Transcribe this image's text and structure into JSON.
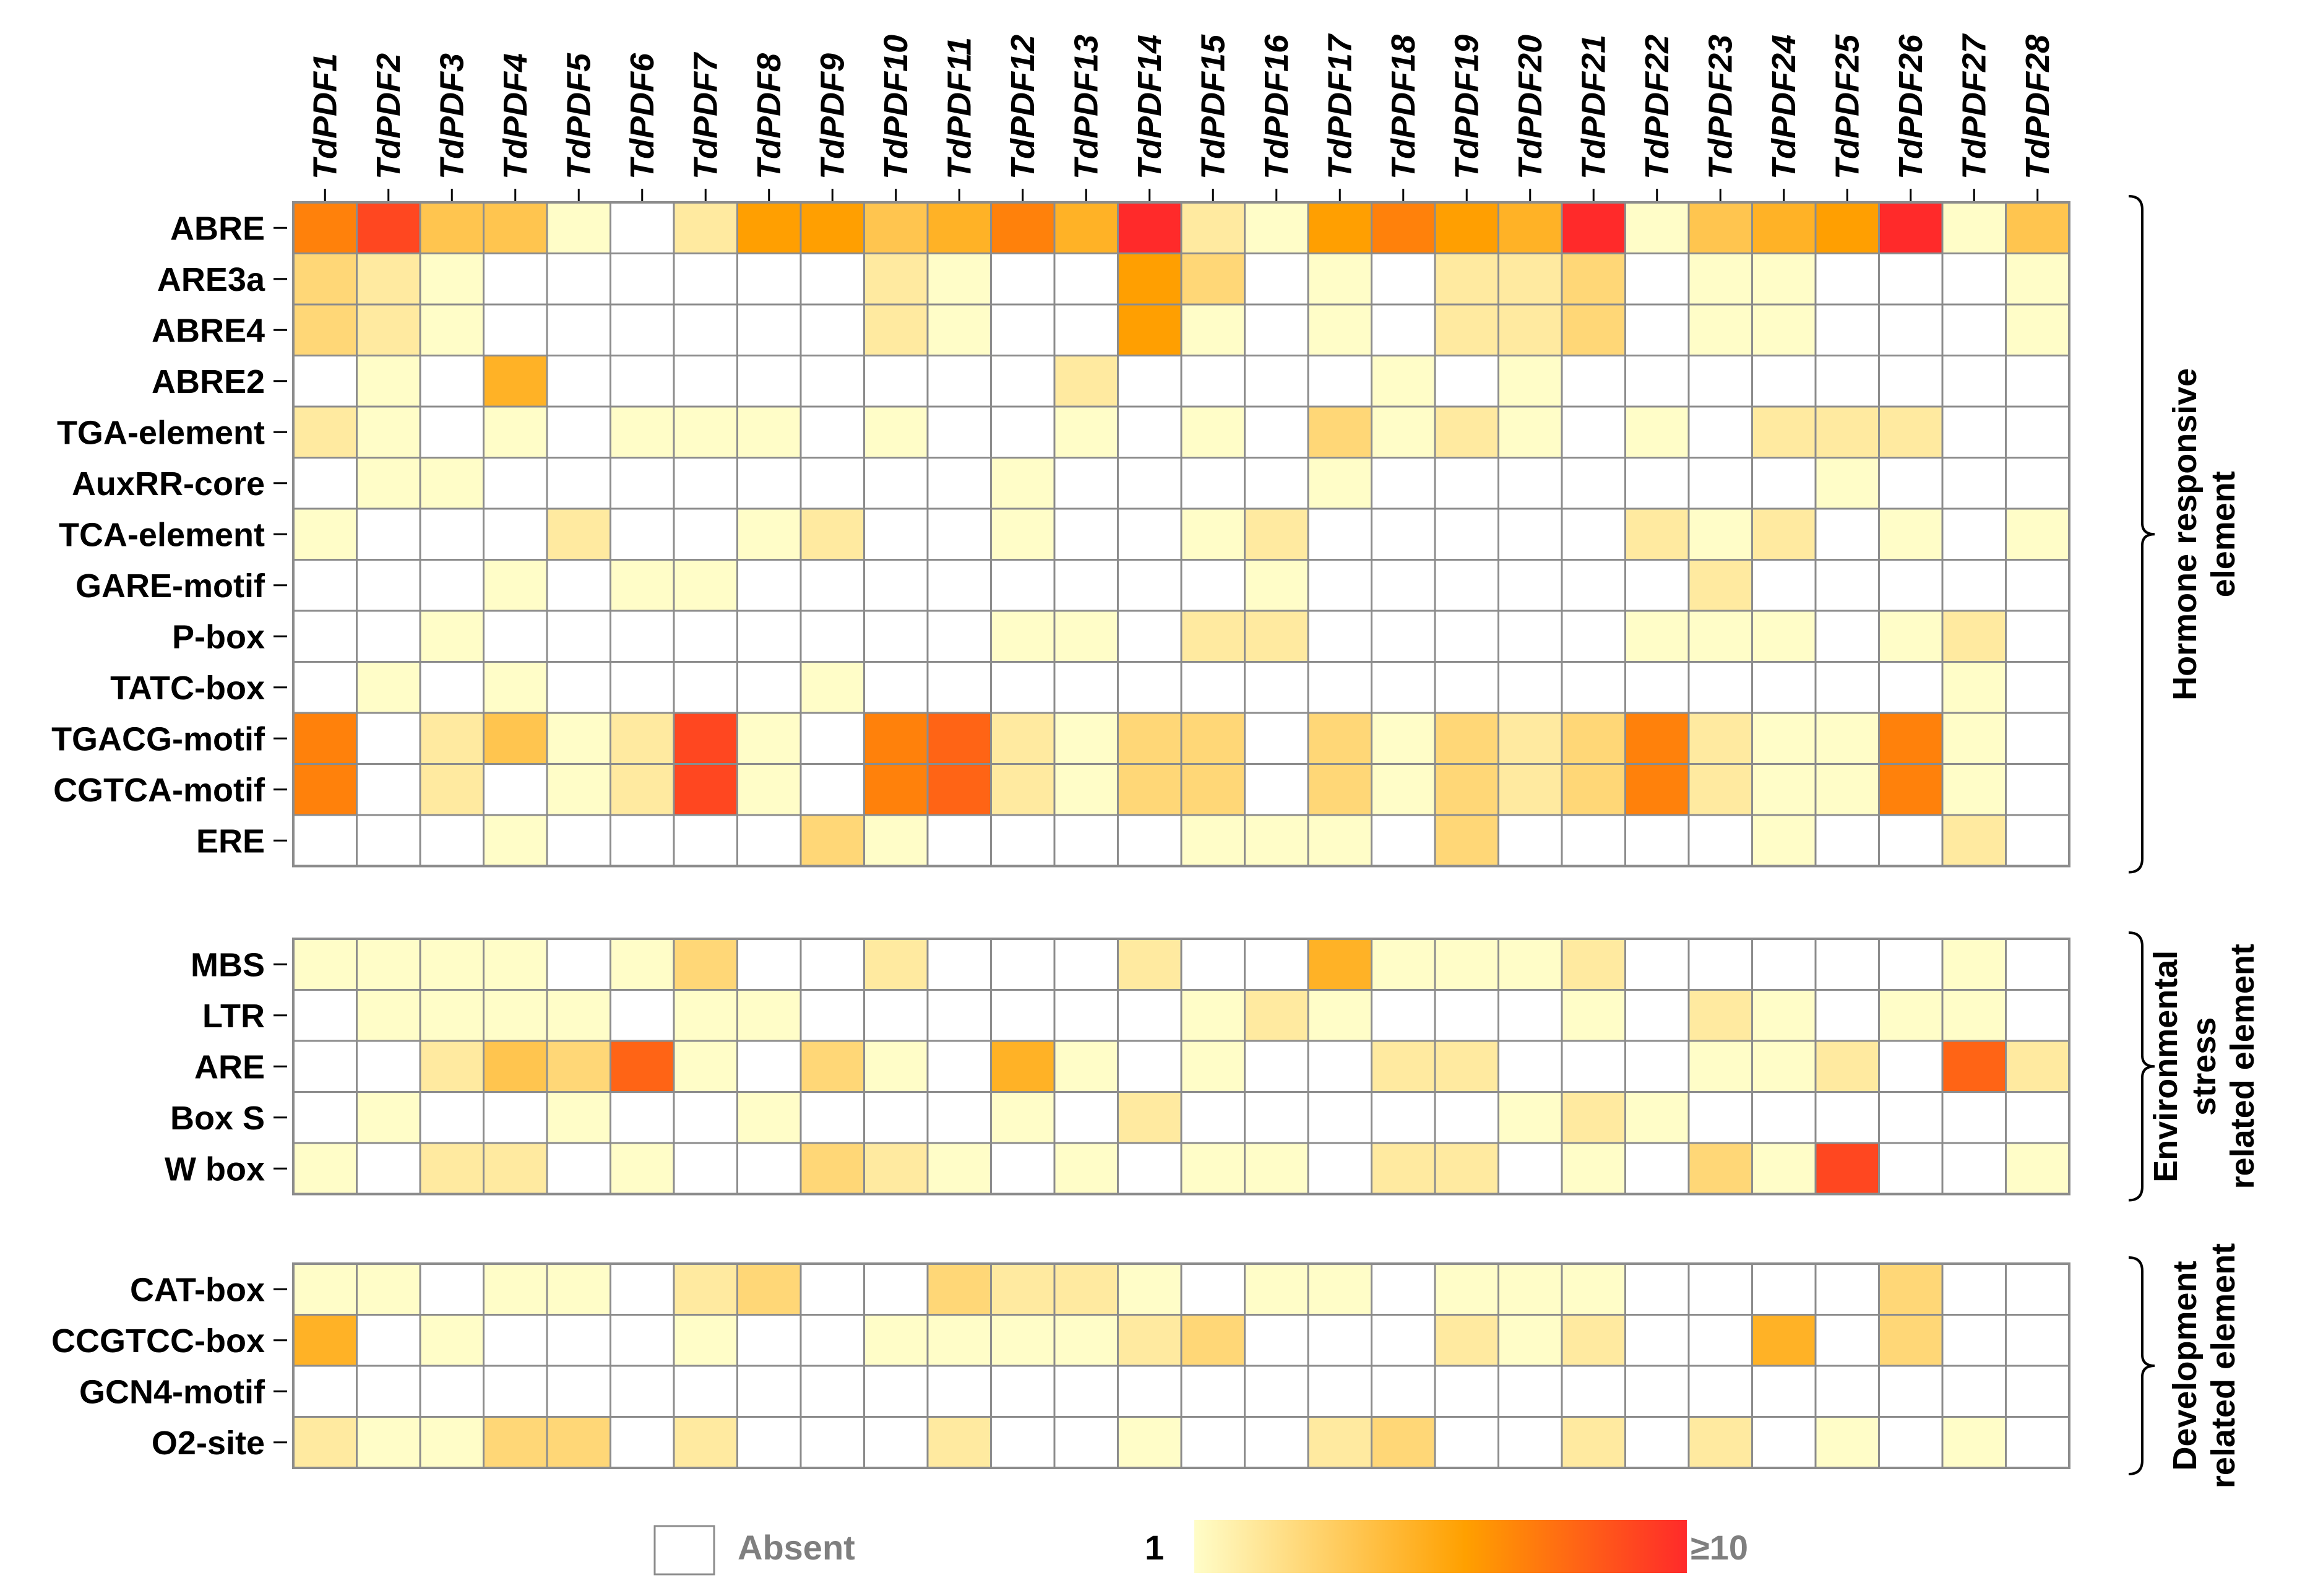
{
  "chart_data": {
    "type": "heatmap",
    "columns": [
      "TdPDF1",
      "TdPDF2",
      "TdPDF3",
      "TdPDF4",
      "TdPDF5",
      "TdPDF6",
      "TdPDF7",
      "TdPDF8",
      "TdPDF9",
      "TdPDF10",
      "TdPDF11",
      "TdPDF12",
      "TdPDF13",
      "TdPDF14",
      "TdPDF15",
      "TdPDF16",
      "TdPDF17",
      "TdPDF18",
      "TdPDF19",
      "TdPDF20",
      "TdPDF21",
      "TdPDF22",
      "TdPDF23",
      "TdPDF24",
      "TdPDF25",
      "TdPDF26",
      "TdPDF27",
      "TdPDF28"
    ],
    "groups": [
      {
        "label": [
          "Hormone responsive",
          "element"
        ],
        "rows": [
          {
            "name": "ABRE",
            "values": [
              7,
              9,
              4,
              4,
              1,
              0,
              2,
              6,
              6,
              4,
              5,
              7,
              5,
              10,
              2,
              1,
              6,
              7,
              6,
              5,
              10,
              1,
              4,
              5,
              6,
              10,
              1,
              4
            ]
          },
          {
            "name": "ARE3a",
            "values": [
              3,
              2,
              1,
              0,
              0,
              0,
              0,
              0,
              0,
              2,
              1,
              0,
              0,
              6,
              3,
              0,
              1,
              0,
              2,
              2,
              3,
              0,
              1,
              1,
              0,
              0,
              0,
              1
            ]
          },
          {
            "name": "ABRE4",
            "values": [
              3,
              2,
              1,
              0,
              0,
              0,
              0,
              0,
              0,
              2,
              1,
              0,
              0,
              6,
              1,
              0,
              1,
              0,
              2,
              2,
              3,
              0,
              1,
              1,
              0,
              0,
              0,
              1
            ]
          },
          {
            "name": "ABRE2",
            "values": [
              0,
              1,
              0,
              5,
              0,
              0,
              0,
              0,
              0,
              0,
              0,
              0,
              2,
              0,
              0,
              0,
              0,
              1,
              0,
              1,
              0,
              0,
              0,
              0,
              0,
              0,
              0,
              0
            ]
          },
          {
            "name": "TGA-element",
            "values": [
              2,
              1,
              0,
              1,
              0,
              1,
              1,
              1,
              0,
              1,
              0,
              0,
              1,
              0,
              1,
              0,
              3,
              1,
              2,
              1,
              0,
              1,
              0,
              2,
              2,
              2,
              0,
              0
            ]
          },
          {
            "name": "AuxRR-core",
            "values": [
              0,
              1,
              1,
              0,
              0,
              0,
              0,
              0,
              0,
              0,
              0,
              1,
              0,
              0,
              0,
              0,
              1,
              0,
              0,
              0,
              0,
              0,
              0,
              0,
              1,
              0,
              0,
              0
            ]
          },
          {
            "name": "TCA-element",
            "values": [
              1,
              0,
              0,
              0,
              2,
              0,
              0,
              1,
              2,
              0,
              0,
              1,
              0,
              0,
              1,
              2,
              0,
              0,
              0,
              0,
              0,
              2,
              1,
              2,
              0,
              1,
              0,
              1
            ]
          },
          {
            "name": "GARE-motif",
            "values": [
              0,
              0,
              0,
              1,
              0,
              1,
              1,
              0,
              0,
              0,
              0,
              0,
              0,
              0,
              0,
              1,
              0,
              0,
              0,
              0,
              0,
              0,
              2,
              0,
              0,
              0,
              0,
              0
            ]
          },
          {
            "name": "P-box",
            "values": [
              0,
              0,
              1,
              0,
              0,
              0,
              0,
              0,
              0,
              0,
              0,
              1,
              1,
              0,
              2,
              2,
              0,
              0,
              0,
              0,
              0,
              1,
              1,
              1,
              0,
              1,
              2,
              0
            ]
          },
          {
            "name": "TATC-box",
            "values": [
              0,
              1,
              0,
              1,
              0,
              0,
              0,
              0,
              1,
              0,
              0,
              0,
              0,
              0,
              0,
              0,
              0,
              0,
              0,
              0,
              0,
              0,
              0,
              0,
              0,
              0,
              1,
              0
            ]
          },
          {
            "name": "TGACG-motif",
            "values": [
              7,
              0,
              2,
              4,
              1,
              2,
              9,
              1,
              0,
              7,
              8,
              2,
              1,
              3,
              3,
              0,
              3,
              1,
              3,
              2,
              3,
              7,
              2,
              1,
              1,
              7,
              1,
              0
            ]
          },
          {
            "name": "CGTCA-motif",
            "values": [
              7,
              0,
              2,
              0,
              1,
              2,
              9,
              1,
              0,
              7,
              8,
              2,
              1,
              3,
              3,
              0,
              3,
              1,
              3,
              2,
              3,
              7,
              2,
              1,
              1,
              7,
              1,
              0
            ]
          },
          {
            "name": "ERE",
            "values": [
              0,
              0,
              0,
              1,
              0,
              0,
              0,
              0,
              3,
              1,
              0,
              0,
              0,
              0,
              1,
              1,
              1,
              0,
              3,
              0,
              0,
              0,
              0,
              1,
              0,
              0,
              2,
              0
            ]
          }
        ]
      },
      {
        "label": [
          "Environmental",
          "stress",
          "related element"
        ],
        "rows": [
          {
            "name": "MBS",
            "values": [
              1,
              1,
              1,
              1,
              0,
              1,
              3,
              0,
              0,
              2,
              0,
              0,
              0,
              2,
              0,
              0,
              5,
              1,
              1,
              1,
              2,
              0,
              0,
              0,
              0,
              0,
              1,
              0
            ]
          },
          {
            "name": "LTR",
            "values": [
              0,
              1,
              1,
              1,
              1,
              0,
              1,
              1,
              0,
              0,
              0,
              0,
              0,
              0,
              1,
              2,
              1,
              0,
              0,
              0,
              1,
              0,
              2,
              1,
              0,
              1,
              1,
              0
            ]
          },
          {
            "name": "ARE",
            "values": [
              0,
              0,
              2,
              4,
              3,
              8,
              1,
              0,
              3,
              1,
              0,
              5,
              1,
              0,
              1,
              0,
              0,
              2,
              2,
              0,
              0,
              0,
              1,
              1,
              2,
              0,
              8,
              2
            ]
          },
          {
            "name": "Box S",
            "values": [
              0,
              1,
              0,
              0,
              1,
              0,
              0,
              1,
              0,
              0,
              0,
              1,
              0,
              2,
              0,
              0,
              0,
              0,
              0,
              1,
              2,
              1,
              0,
              0,
              0,
              0,
              0,
              0
            ]
          },
          {
            "name": "W box",
            "values": [
              1,
              0,
              2,
              2,
              0,
              1,
              0,
              0,
              3,
              2,
              1,
              0,
              1,
              0,
              1,
              1,
              0,
              2,
              2,
              0,
              1,
              0,
              3,
              1,
              9,
              0,
              0,
              1
            ]
          }
        ]
      },
      {
        "label": [
          "Development",
          "related element"
        ],
        "rows": [
          {
            "name": "CAT-box",
            "values": [
              1,
              1,
              0,
              1,
              1,
              0,
              2,
              3,
              0,
              0,
              3,
              2,
              2,
              1,
              0,
              1,
              1,
              0,
              1,
              1,
              1,
              0,
              0,
              0,
              0,
              3,
              0,
              0
            ]
          },
          {
            "name": "CCGTCC-box",
            "values": [
              5,
              0,
              1,
              0,
              0,
              0,
              1,
              0,
              0,
              1,
              1,
              1,
              1,
              2,
              3,
              0,
              0,
              0,
              2,
              1,
              2,
              0,
              0,
              5,
              0,
              3,
              0,
              0
            ]
          },
          {
            "name": "GCN4-motif",
            "values": [
              0,
              0,
              0,
              0,
              0,
              0,
              0,
              0,
              0,
              0,
              0,
              0,
              0,
              0,
              0,
              0,
              0,
              0,
              0,
              0,
              0,
              0,
              0,
              0,
              0,
              0,
              0,
              0
            ]
          },
          {
            "name": "O2-site",
            "values": [
              2,
              1,
              1,
              3,
              3,
              0,
              2,
              0,
              0,
              0,
              2,
              0,
              0,
              1,
              0,
              0,
              2,
              3,
              0,
              0,
              2,
              0,
              2,
              0,
              1,
              0,
              1,
              0
            ]
          }
        ]
      }
    ],
    "scale": {
      "min": 1,
      "max": 10,
      "colors": [
        "#fffdc8",
        "#ffa000",
        "#ff2a2a"
      ]
    },
    "legend": {
      "absent_label": "Absent",
      "min_label": "1",
      "max_label": "≥10"
    }
  }
}
